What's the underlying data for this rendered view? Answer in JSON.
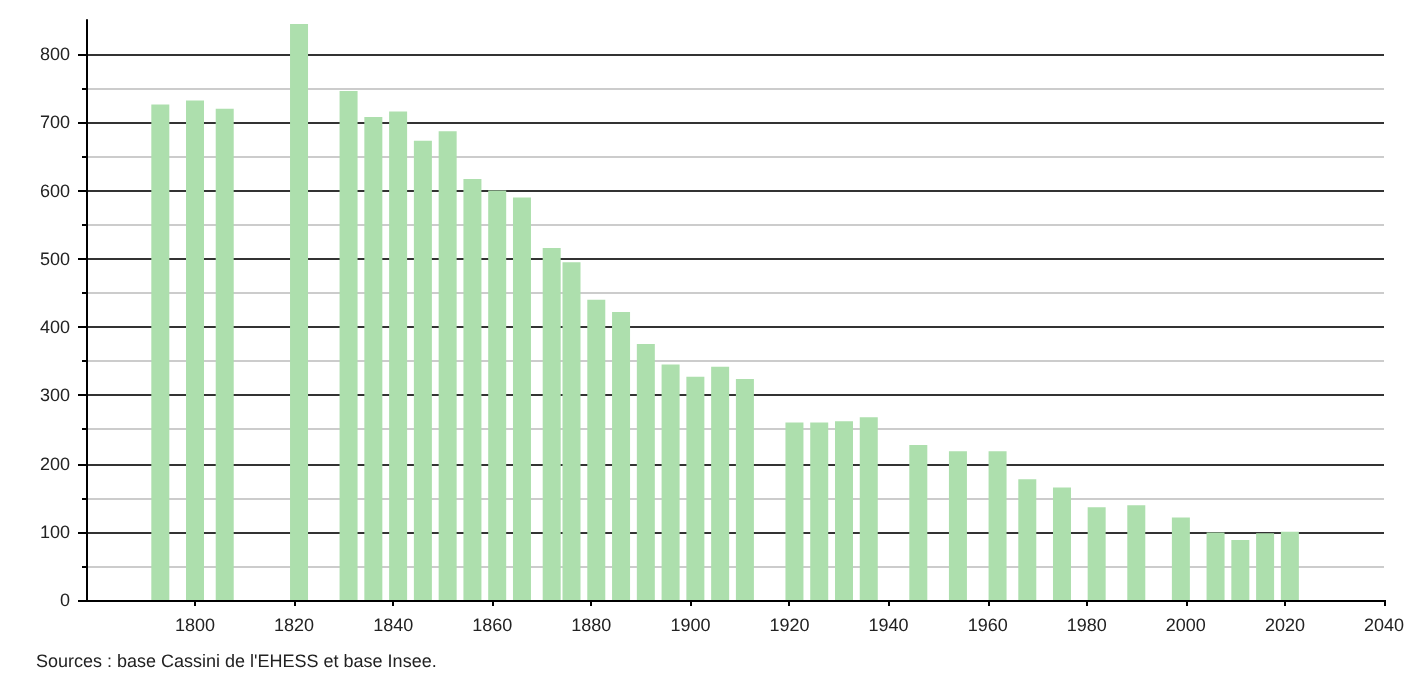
{
  "chart_data": {
    "type": "bar",
    "x": [
      1793,
      1800,
      1806,
      1821,
      1831,
      1836,
      1841,
      1846,
      1851,
      1856,
      1861,
      1866,
      1872,
      1876,
      1881,
      1886,
      1891,
      1896,
      1901,
      1906,
      1911,
      1921,
      1926,
      1931,
      1936,
      1946,
      1954,
      1962,
      1968,
      1975,
      1982,
      1990,
      1999,
      2006,
      2011,
      2016,
      2021
    ],
    "values": [
      726,
      732,
      720,
      844,
      746,
      708,
      716,
      673,
      687,
      617,
      600,
      590,
      516,
      495,
      440,
      422,
      375,
      345,
      327,
      342,
      324,
      260,
      260,
      262,
      268,
      227,
      218,
      218,
      177,
      165,
      136,
      139,
      121,
      99,
      88,
      98,
      100
    ],
    "color": "#addfad",
    "xlim": [
      1778,
      2040
    ],
    "xticks": [
      1800,
      1820,
      1840,
      1860,
      1880,
      1900,
      1920,
      1940,
      1960,
      1980,
      2000,
      2020,
      2040
    ],
    "ylim": [
      0,
      850
    ],
    "yticks": [
      0,
      100,
      200,
      300,
      400,
      500,
      600,
      700,
      800
    ],
    "grid": "y",
    "annotations": [
      "Sources : base Cassini de l'EHESS et base Insee."
    ]
  }
}
